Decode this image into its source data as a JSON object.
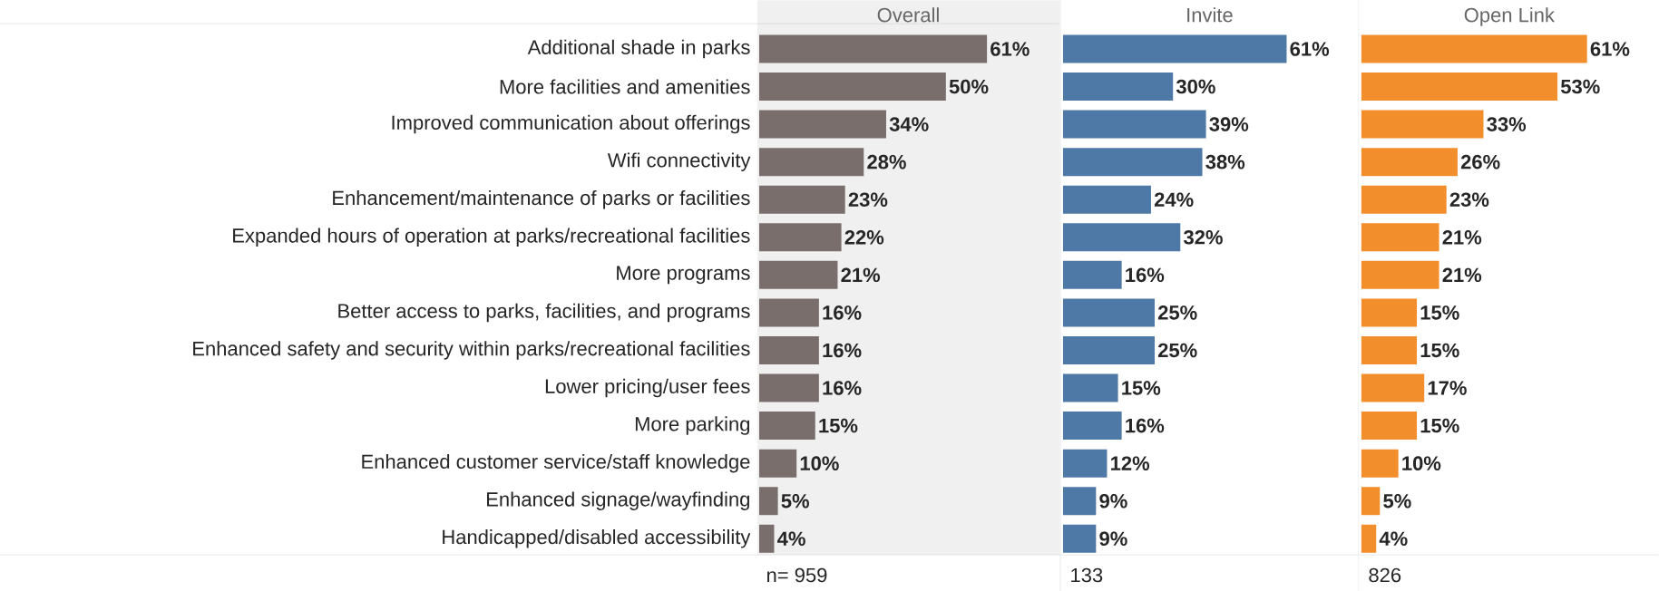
{
  "chart_data": [
    {
      "type": "bar",
      "orientation": "horizontal",
      "title": "Overall",
      "color": "#796e6b",
      "categories": [
        "Additional shade in parks",
        "More facilities and amenities",
        "Improved communication about offerings",
        "Wifi connectivity",
        "Enhancement/maintenance of parks or facilities",
        "Expanded hours of operation at parks/recreational facilities",
        "More programs",
        "Better access to parks, facilities, and programs",
        "Enhanced safety and security within parks/recreational facilities",
        "Lower pricing/user fees",
        "More parking",
        "Enhanced customer service/staff knowledge",
        "Enhanced signage/wayfinding",
        "Handicapped/disabled accessibility"
      ],
      "values": [
        61,
        50,
        34,
        28,
        23,
        22,
        21,
        16,
        16,
        16,
        15,
        10,
        5,
        4
      ],
      "value_labels": [
        "61%",
        "50%",
        "34%",
        "28%",
        "23%",
        "22%",
        "21%",
        "16%",
        "16%",
        "16%",
        "15%",
        "10%",
        "5%",
        "4%"
      ],
      "annotations": [
        "n= 959"
      ]
    },
    {
      "type": "bar",
      "orientation": "horizontal",
      "title": "Invite",
      "color": "#4e79a7",
      "categories": [
        null,
        null,
        null,
        null,
        null,
        null,
        null,
        null,
        null,
        null,
        null,
        null,
        null,
        null
      ],
      "values": [
        61,
        30,
        39,
        38,
        24,
        32,
        16,
        25,
        25,
        15,
        16,
        12,
        9,
        9
      ],
      "value_labels": [
        "61%",
        "30%",
        "39%",
        "38%",
        "24%",
        "32%",
        "16%",
        "25%",
        "25%",
        "15%",
        "16%",
        "12%",
        "9%",
        "9%"
      ],
      "annotations": [
        "133"
      ]
    },
    {
      "type": "bar",
      "orientation": "horizontal",
      "title": "Open Link",
      "color": "#f28e2b",
      "categories": [
        null,
        null,
        null,
        null,
        null,
        null,
        null,
        null,
        null,
        null,
        null,
        null,
        null,
        null
      ],
      "values": [
        61,
        53,
        33,
        26,
        23,
        21,
        21,
        15,
        15,
        17,
        15,
        10,
        5,
        4
      ],
      "value_labels": [
        "61%",
        "53%",
        "33%",
        "26%",
        "23%",
        "21%",
        "21%",
        "15%",
        "15%",
        "17%",
        "15%",
        "10%",
        "5%",
        "4%"
      ],
      "annotations": [
        "826"
      ]
    }
  ]
}
